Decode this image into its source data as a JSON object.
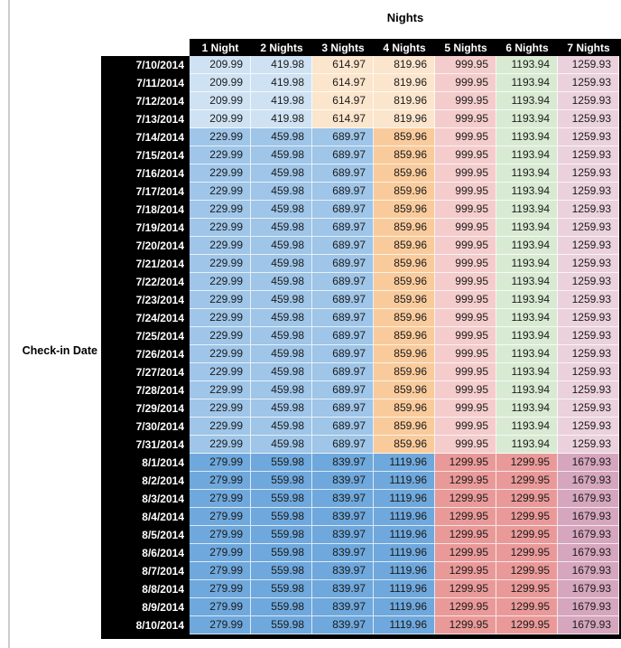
{
  "title": "Nights",
  "row_axis_label": "Check-in Date",
  "palette": {
    "header_bg": "#000000",
    "header_text": "#ffffff",
    "blue_pale": "#CFE2F3",
    "blue_mid": "#9FC5E8",
    "blue_strong": "#6FA8DC",
    "orange_pale": "#FCE5CD",
    "orange_mid": "#F9CB9C",
    "red_pale": "#F4CCCC",
    "red_mid": "#EA9999",
    "green_pale": "#D9EAD3",
    "magenta_pale": "#EAD1DC",
    "magenta_mid": "#D5A6BD"
  },
  "groups": {
    "early_july": {
      "cell_colors": [
        "blue_pale",
        "blue_pale",
        "orange_pale",
        "orange_pale",
        "red_pale",
        "green_pale",
        "magenta_pale"
      ]
    },
    "mid_july": {
      "cell_colors": [
        "blue_mid",
        "blue_mid",
        "blue_mid",
        "orange_mid",
        "red_pale",
        "green_pale",
        "magenta_pale"
      ]
    },
    "august": {
      "cell_colors": [
        "blue_strong",
        "blue_strong",
        "blue_strong",
        "blue_strong",
        "red_mid",
        "red_mid",
        "magenta_mid"
      ]
    }
  },
  "chart_data": {
    "type": "table",
    "title": "Nights",
    "row_label": "Check-in Date",
    "columns": [
      "1 Night",
      "2 Nights",
      "3 Nights",
      "4 Nights",
      "5 Nights",
      "6 Nights",
      "7 Nights"
    ],
    "rows": [
      {
        "date": "7/10/2014",
        "group": "early_july",
        "values": [
          209.99,
          419.98,
          614.97,
          819.96,
          999.95,
          1193.94,
          1259.93
        ]
      },
      {
        "date": "7/11/2014",
        "group": "early_july",
        "values": [
          209.99,
          419.98,
          614.97,
          819.96,
          999.95,
          1193.94,
          1259.93
        ]
      },
      {
        "date": "7/12/2014",
        "group": "early_july",
        "values": [
          209.99,
          419.98,
          614.97,
          819.96,
          999.95,
          1193.94,
          1259.93
        ]
      },
      {
        "date": "7/13/2014",
        "group": "early_july",
        "values": [
          209.99,
          419.98,
          614.97,
          819.96,
          999.95,
          1193.94,
          1259.93
        ]
      },
      {
        "date": "7/14/2014",
        "group": "mid_july",
        "values": [
          229.99,
          459.98,
          689.97,
          859.96,
          999.95,
          1193.94,
          1259.93
        ]
      },
      {
        "date": "7/15/2014",
        "group": "mid_july",
        "values": [
          229.99,
          459.98,
          689.97,
          859.96,
          999.95,
          1193.94,
          1259.93
        ]
      },
      {
        "date": "7/16/2014",
        "group": "mid_july",
        "values": [
          229.99,
          459.98,
          689.97,
          859.96,
          999.95,
          1193.94,
          1259.93
        ]
      },
      {
        "date": "7/17/2014",
        "group": "mid_july",
        "values": [
          229.99,
          459.98,
          689.97,
          859.96,
          999.95,
          1193.94,
          1259.93
        ]
      },
      {
        "date": "7/18/2014",
        "group": "mid_july",
        "values": [
          229.99,
          459.98,
          689.97,
          859.96,
          999.95,
          1193.94,
          1259.93
        ]
      },
      {
        "date": "7/19/2014",
        "group": "mid_july",
        "values": [
          229.99,
          459.98,
          689.97,
          859.96,
          999.95,
          1193.94,
          1259.93
        ]
      },
      {
        "date": "7/20/2014",
        "group": "mid_july",
        "values": [
          229.99,
          459.98,
          689.97,
          859.96,
          999.95,
          1193.94,
          1259.93
        ]
      },
      {
        "date": "7/21/2014",
        "group": "mid_july",
        "values": [
          229.99,
          459.98,
          689.97,
          859.96,
          999.95,
          1193.94,
          1259.93
        ]
      },
      {
        "date": "7/22/2014",
        "group": "mid_july",
        "values": [
          229.99,
          459.98,
          689.97,
          859.96,
          999.95,
          1193.94,
          1259.93
        ]
      },
      {
        "date": "7/23/2014",
        "group": "mid_july",
        "values": [
          229.99,
          459.98,
          689.97,
          859.96,
          999.95,
          1193.94,
          1259.93
        ]
      },
      {
        "date": "7/24/2014",
        "group": "mid_july",
        "values": [
          229.99,
          459.98,
          689.97,
          859.96,
          999.95,
          1193.94,
          1259.93
        ]
      },
      {
        "date": "7/25/2014",
        "group": "mid_july",
        "values": [
          229.99,
          459.98,
          689.97,
          859.96,
          999.95,
          1193.94,
          1259.93
        ]
      },
      {
        "date": "7/26/2014",
        "group": "mid_july",
        "values": [
          229.99,
          459.98,
          689.97,
          859.96,
          999.95,
          1193.94,
          1259.93
        ]
      },
      {
        "date": "7/27/2014",
        "group": "mid_july",
        "values": [
          229.99,
          459.98,
          689.97,
          859.96,
          999.95,
          1193.94,
          1259.93
        ]
      },
      {
        "date": "7/28/2014",
        "group": "mid_july",
        "values": [
          229.99,
          459.98,
          689.97,
          859.96,
          999.95,
          1193.94,
          1259.93
        ]
      },
      {
        "date": "7/29/2014",
        "group": "mid_july",
        "values": [
          229.99,
          459.98,
          689.97,
          859.96,
          999.95,
          1193.94,
          1259.93
        ]
      },
      {
        "date": "7/30/2014",
        "group": "mid_july",
        "values": [
          229.99,
          459.98,
          689.97,
          859.96,
          999.95,
          1193.94,
          1259.93
        ]
      },
      {
        "date": "7/31/2014",
        "group": "mid_july",
        "values": [
          229.99,
          459.98,
          689.97,
          859.96,
          999.95,
          1193.94,
          1259.93
        ]
      },
      {
        "date": "8/1/2014",
        "group": "august",
        "values": [
          279.99,
          559.98,
          839.97,
          1119.96,
          1299.95,
          1299.95,
          1679.93
        ]
      },
      {
        "date": "8/2/2014",
        "group": "august",
        "values": [
          279.99,
          559.98,
          839.97,
          1119.96,
          1299.95,
          1299.95,
          1679.93
        ]
      },
      {
        "date": "8/3/2014",
        "group": "august",
        "values": [
          279.99,
          559.98,
          839.97,
          1119.96,
          1299.95,
          1299.95,
          1679.93
        ]
      },
      {
        "date": "8/4/2014",
        "group": "august",
        "values": [
          279.99,
          559.98,
          839.97,
          1119.96,
          1299.95,
          1299.95,
          1679.93
        ]
      },
      {
        "date": "8/5/2014",
        "group": "august",
        "values": [
          279.99,
          559.98,
          839.97,
          1119.96,
          1299.95,
          1299.95,
          1679.93
        ]
      },
      {
        "date": "8/6/2014",
        "group": "august",
        "values": [
          279.99,
          559.98,
          839.97,
          1119.96,
          1299.95,
          1299.95,
          1679.93
        ]
      },
      {
        "date": "8/7/2014",
        "group": "august",
        "values": [
          279.99,
          559.98,
          839.97,
          1119.96,
          1299.95,
          1299.95,
          1679.93
        ]
      },
      {
        "date": "8/8/2014",
        "group": "august",
        "values": [
          279.99,
          559.98,
          839.97,
          1119.96,
          1299.95,
          1299.95,
          1679.93
        ]
      },
      {
        "date": "8/9/2014",
        "group": "august",
        "values": [
          279.99,
          559.98,
          839.97,
          1119.96,
          1299.95,
          1299.95,
          1679.93
        ]
      },
      {
        "date": "8/10/2014",
        "group": "august",
        "values": [
          279.99,
          559.98,
          839.97,
          1119.96,
          1299.95,
          1299.95,
          1679.93
        ]
      }
    ]
  }
}
